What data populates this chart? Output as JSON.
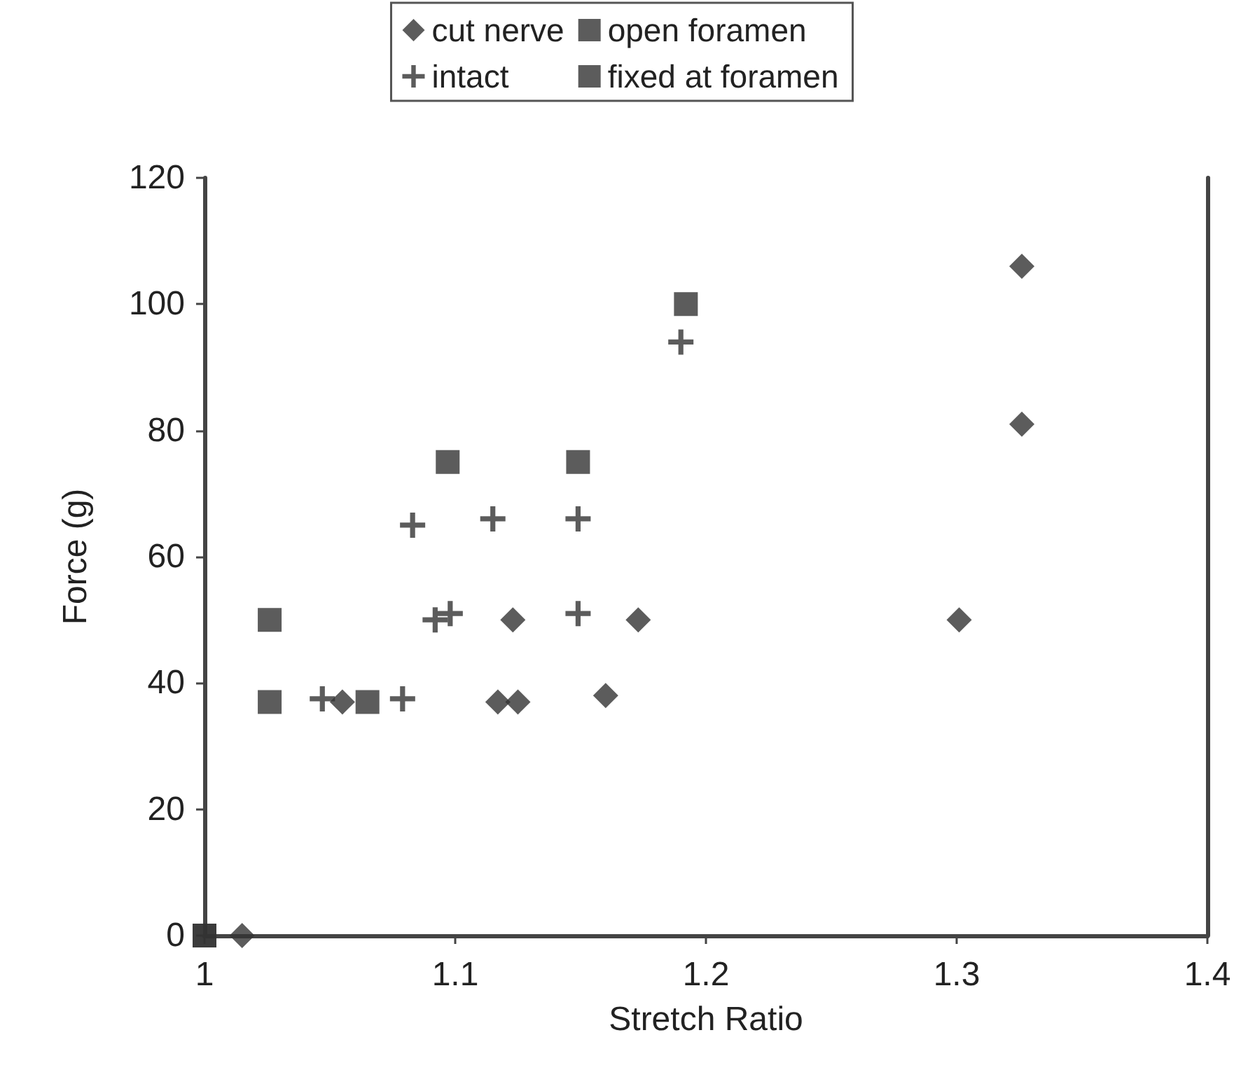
{
  "chart_data": {
    "type": "scatter",
    "xlabel": "Stretch Ratio",
    "ylabel": "Force (g)",
    "xlim": [
      1,
      1.4
    ],
    "xticks": [
      1,
      1.1,
      1.2,
      1.3,
      1.4
    ],
    "ylim": [
      0,
      120
    ],
    "yticks": [
      0,
      20,
      40,
      60,
      80,
      100,
      120
    ],
    "grid": false,
    "legend": "top",
    "series": [
      {
        "name": "cut nerve",
        "color": "#333333",
        "marker": "diamond",
        "x": [
          1.015,
          1.055,
          1.117,
          1.125,
          1.123,
          1.16,
          1.173,
          1.301,
          1.326,
          1.326
        ],
        "values": [
          0,
          37,
          37,
          37,
          50,
          38,
          50,
          50,
          81,
          106
        ]
      },
      {
        "name": "intact",
        "color": "#333333",
        "marker": "cross",
        "x": [
          1.047,
          1.079,
          1.092,
          1.098,
          1.149,
          1.083,
          1.115,
          1.149,
          1.19
        ],
        "values": [
          37.5,
          37.5,
          50,
          51,
          51,
          65,
          66,
          66,
          94
        ]
      },
      {
        "name": "open foramen",
        "color": "#333333",
        "marker": "square",
        "x": [
          1,
          1.065,
          1.149,
          1.192
        ],
        "values": [
          0,
          37,
          75,
          100
        ]
      },
      {
        "name": "fixed at foramen",
        "color": "#333333",
        "marker": "square",
        "x": [
          1,
          1.026,
          1.026,
          1.097
        ],
        "values": [
          0,
          37,
          50,
          75
        ]
      }
    ]
  }
}
